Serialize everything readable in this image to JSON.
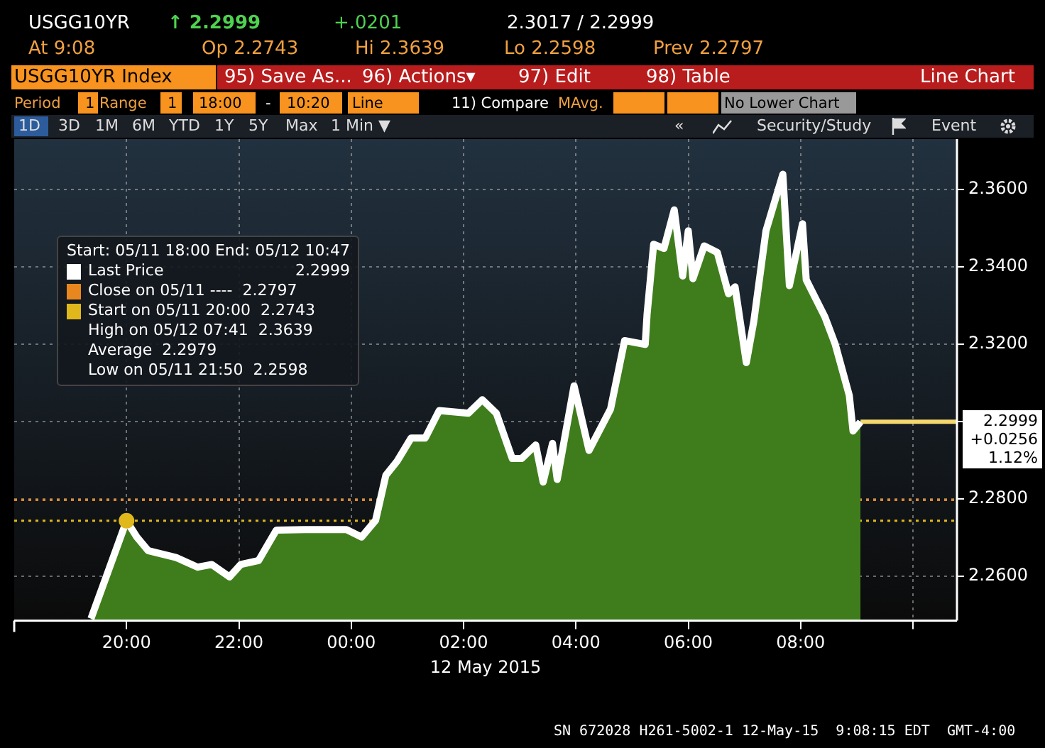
{
  "chart_data": {
    "type": "area",
    "xlabel": "12 May 2015",
    "x": [
      "2015-05-11T19:22",
      "2015-05-11T20:00",
      "2015-05-11T20:11",
      "2015-05-11T20:23",
      "2015-05-11T20:53",
      "2015-05-11T21:16",
      "2015-05-11T21:31",
      "2015-05-11T21:50",
      "2015-05-11T22:02",
      "2015-05-11T22:21",
      "2015-05-11T22:40",
      "2015-05-11T23:10",
      "2015-05-11T23:55",
      "2015-05-12T00:11",
      "2015-05-12T00:26",
      "2015-05-12T00:37",
      "2015-05-12T00:49",
      "2015-05-12T01:04",
      "2015-05-12T01:19",
      "2015-05-12T01:34",
      "2015-05-12T02:05",
      "2015-05-12T02:20",
      "2015-05-12T02:35",
      "2015-05-12T02:52",
      "2015-05-12T03:02",
      "2015-05-12T03:17",
      "2015-05-12T03:25",
      "2015-05-12T03:35",
      "2015-05-12T03:40",
      "2015-05-12T03:58",
      "2015-05-12T04:14",
      "2015-05-12T04:37",
      "2015-05-12T04:52",
      "2015-05-12T05:14",
      "2015-05-12T05:16",
      "2015-05-12T05:23",
      "2015-05-12T05:34",
      "2015-05-12T05:45",
      "2015-05-12T05:54",
      "2015-05-12T06:00",
      "2015-05-12T06:05",
      "2015-05-12T06:17",
      "2015-05-12T06:31",
      "2015-05-12T06:43",
      "2015-05-12T06:50",
      "2015-05-12T07:02",
      "2015-05-12T07:10",
      "2015-05-12T07:23",
      "2015-05-12T07:41",
      "2015-05-12T07:48",
      "2015-05-12T08:02",
      "2015-05-12T08:06",
      "2015-05-12T08:26",
      "2015-05-12T08:37",
      "2015-05-12T08:52",
      "2015-05-12T08:56",
      "2015-05-12T09:04"
    ],
    "series": [
      {
        "name": "Last Price",
        "color": "#ffffff",
        "values": [
          2.249,
          2.2743,
          2.2701,
          2.2666,
          2.2648,
          2.2623,
          2.263,
          2.2598,
          2.263,
          2.264,
          2.2719,
          2.272,
          2.272,
          2.2701,
          2.2744,
          2.2861,
          2.2897,
          2.2957,
          2.2957,
          2.3028,
          2.3021,
          2.3056,
          2.3021,
          2.2904,
          2.2904,
          2.2939,
          2.2843,
          2.2943,
          2.285,
          2.3092,
          2.2925,
          2.3032,
          2.3209,
          2.3199,
          2.3277,
          2.3458,
          2.3447,
          2.3547,
          2.3376,
          2.3493,
          2.3369,
          2.3454,
          2.3437,
          2.333,
          2.3348,
          2.3152,
          2.3259,
          2.3493,
          2.3639,
          2.3351,
          2.3511,
          2.3366,
          2.327,
          2.3199,
          2.3067,
          2.2975,
          2.2999
        ]
      },
      {
        "type": "scatter",
        "color": "#e0b81c",
        "x": [
          "2015-05-11T20:00"
        ],
        "values": [
          2.2743
        ]
      },
      {
        "type": "line",
        "color": "#f5d76e",
        "x": [
          "2015-05-12T09:04",
          "2015-05-12T10:47"
        ],
        "values": [
          2.2999,
          2.2999
        ]
      }
    ],
    "xlim": [
      "2015-05-11T18:00",
      "2015-05-12T10:47"
    ],
    "xticks": [
      {
        "value": "2015-05-11T20:00",
        "label": "20:00"
      },
      {
        "value": "2015-05-11T22:00",
        "label": "22:00"
      },
      {
        "value": "2015-05-12T00:00",
        "label": "00:00"
      },
      {
        "value": "2015-05-12T02:00",
        "label": "02:00"
      },
      {
        "value": "2015-05-12T04:00",
        "label": "04:00"
      },
      {
        "value": "2015-05-12T06:00",
        "label": "06:00"
      },
      {
        "value": "2015-05-12T08:00",
        "label": "08:00"
      },
      {
        "value": "2015-05-12T10:00",
        "label": null
      }
    ],
    "ylim": [
      2.2485,
      2.373
    ],
    "yticks": [
      {
        "value": 2.26,
        "label": "2.2600"
      },
      {
        "value": 2.28,
        "label": "2.2800"
      },
      {
        "value": 2.3,
        "label": null
      },
      {
        "value": 2.32,
        "label": "2.3200"
      },
      {
        "value": 2.34,
        "label": "2.3400"
      },
      {
        "value": 2.36,
        "label": "2.3600"
      }
    ],
    "grid": true,
    "legend": "top left",
    "line_style": "solid",
    "ref_lines": [
      {
        "axis": "y",
        "value": 2.2797,
        "color": "#e8871e",
        "line_style": "dotted"
      },
      {
        "axis": "y",
        "value": 2.2743,
        "color": "#e0b81c",
        "line_style": "dotted"
      }
    ],
    "annotations": [
      "USGG10YR",
      "↑ 2.2999",
      "+.0201",
      "2.3017 / 2.2999",
      "At 9:08",
      "Op 2.2743",
      "Hi 2.3639",
      "Lo 2.2598",
      "Prev 2.2797",
      "USGG10YR Index",
      "95) Save As...",
      "96) Actions▾",
      "97) Edit",
      "98) Table",
      "Line Chart",
      "Period",
      "1",
      "Range",
      "1",
      "18:00",
      "-",
      "10:20",
      "Line",
      "11) Compare",
      "MAvg.",
      "No Lower Chart",
      "1D",
      "3D",
      "1M",
      "6M",
      "YTD",
      "1Y",
      "5Y",
      "Max",
      "1 Min ▼",
      "«",
      "Security/Study",
      "Event",
      "Start: 05/11 18:00 End: 05/12 10:47",
      "High on 05/12 07:41  2.3639",
      "Average  2.2979",
      "Low on 05/11 21:50  2.2598",
      {
        "text": "2.2999",
        "x": "2015-05-12T10:47",
        "y": 2.2999
      },
      "+0.0256",
      "1.12%",
      "SN 672028 H261-5002-1 12-May-15  9:08:15 EDT  GMT-4:00",
      "Close on 05/11 ----  2.2797",
      "Start on 05/11 20:00  2.2743"
    ]
  }
}
